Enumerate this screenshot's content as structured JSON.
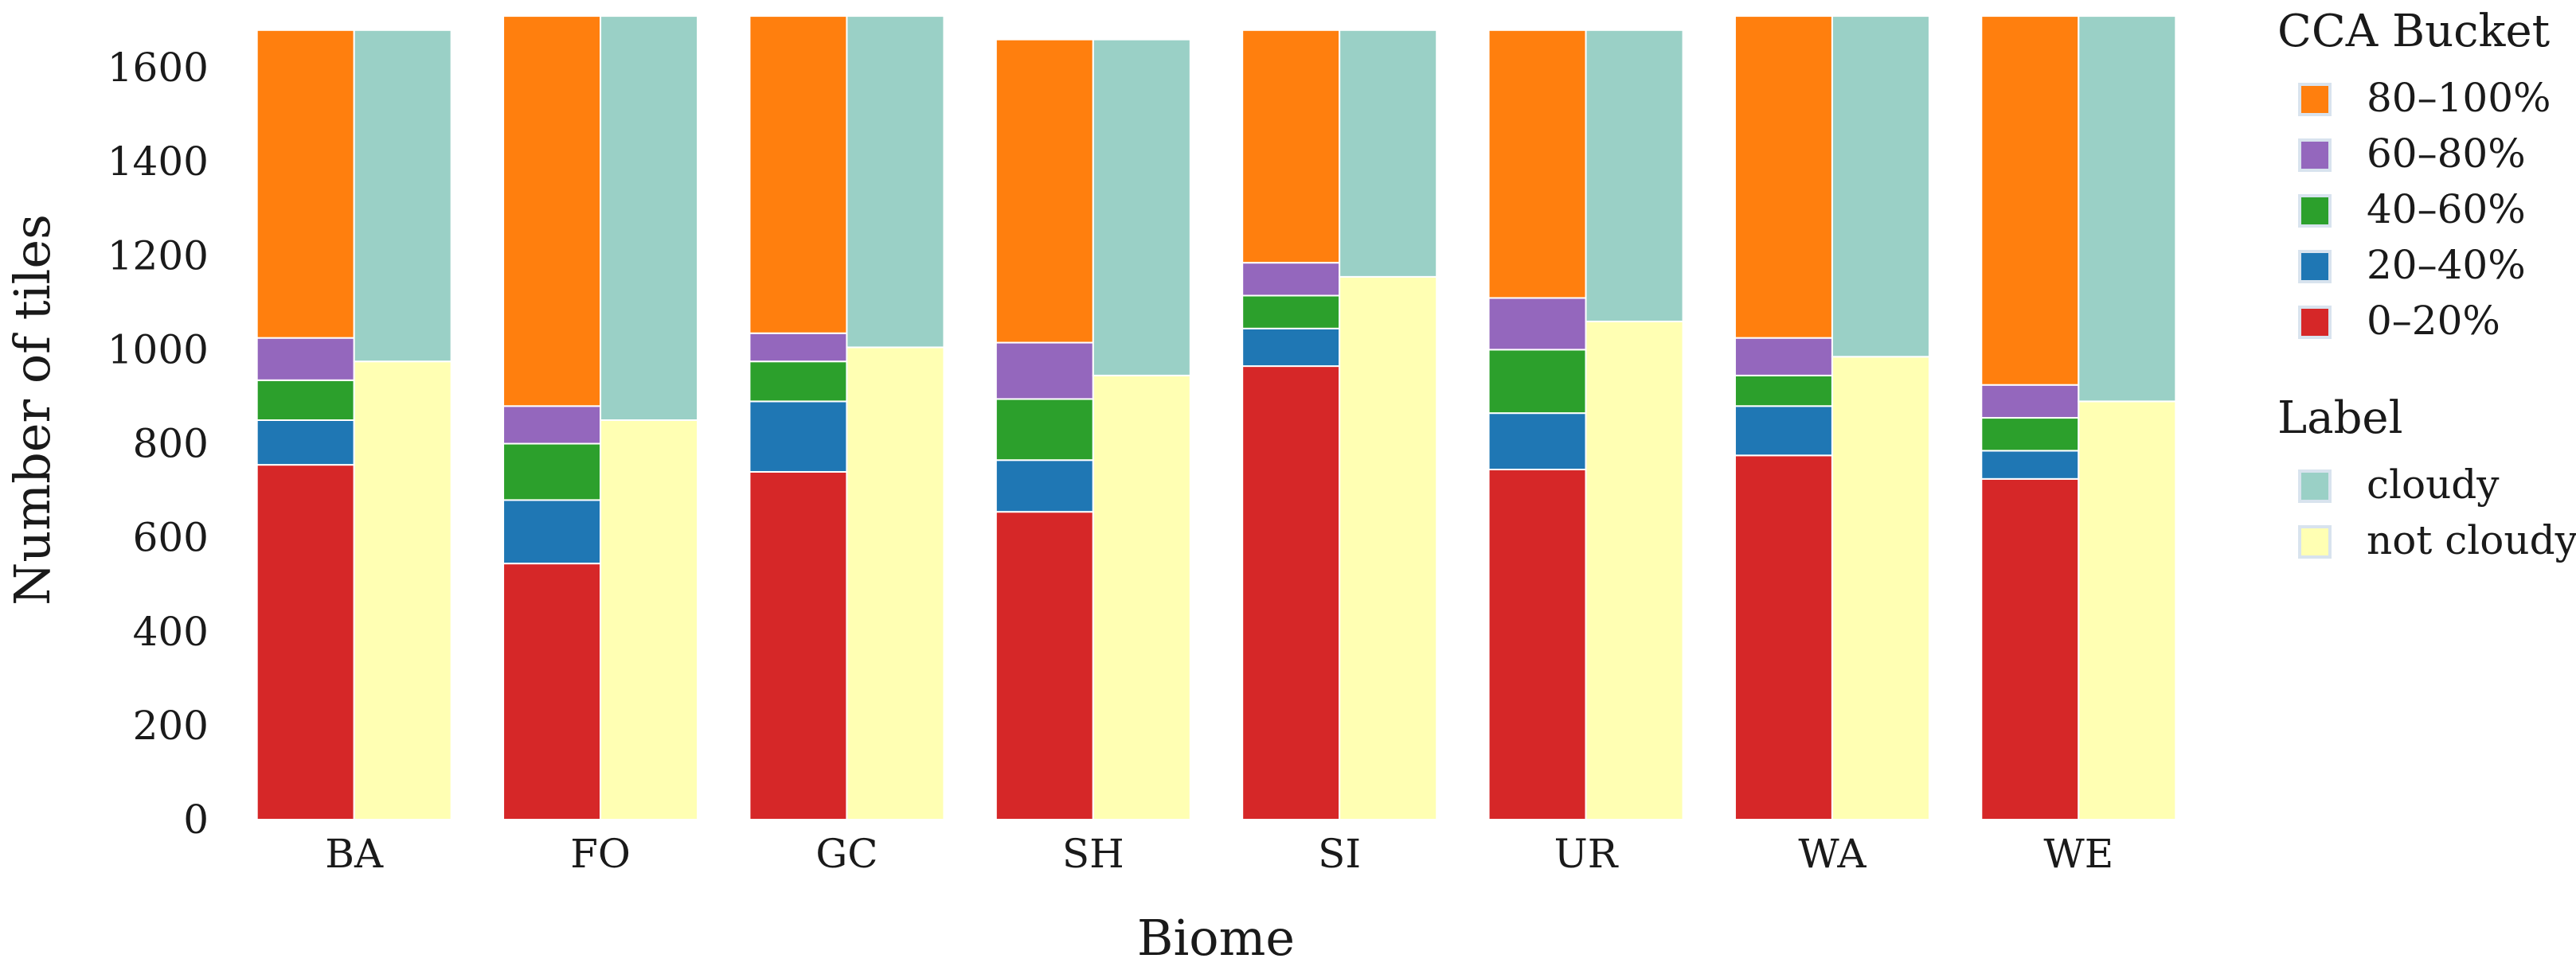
{
  "chart_data": {
    "type": "bar",
    "subtype": "side-by-side stacked bars",
    "title": "",
    "xlabel": "Biome",
    "ylabel": "Number of tiles",
    "ylim": [
      0,
      1700
    ],
    "yticks": [
      0,
      200,
      400,
      600,
      800,
      1000,
      1200,
      1400,
      1600
    ],
    "grid": false,
    "categories": [
      "BA",
      "FO",
      "GC",
      "SH",
      "SI",
      "UR",
      "WA",
      "WE"
    ],
    "cca_series": [
      {
        "name": "0–20%",
        "color": "#d62728",
        "values": [
          755,
          545,
          740,
          655,
          965,
          745,
          775,
          725
        ]
      },
      {
        "name": "20–40%",
        "color": "#1f77b4",
        "values": [
          95,
          135,
          150,
          110,
          80,
          120,
          105,
          60
        ]
      },
      {
        "name": "40–60%",
        "color": "#2ca02c",
        "values": [
          85,
          120,
          85,
          130,
          70,
          135,
          65,
          70
        ]
      },
      {
        "name": "60–80%",
        "color": "#9467bd",
        "values": [
          90,
          80,
          60,
          120,
          70,
          110,
          80,
          70
        ]
      },
      {
        "name": "80–100%",
        "color": "#ff7f0e",
        "values": [
          655,
          830,
          675,
          645,
          495,
          570,
          685,
          785
        ]
      }
    ],
    "label_series": [
      {
        "name": "not cloudy",
        "color": "#ffffb3",
        "values": [
          975,
          850,
          1005,
          945,
          1155,
          1060,
          985,
          890
        ]
      },
      {
        "name": "cloudy",
        "color": "#9ad0c6",
        "values": [
          705,
          860,
          705,
          715,
          525,
          620,
          725,
          820
        ]
      }
    ],
    "legend": {
      "position": "right",
      "groups": [
        {
          "title": "CCA Bucket",
          "entries": [
            "80–100%",
            "60–80%",
            "40–60%",
            "20–40%",
            "0–20%"
          ]
        },
        {
          "title": "Label",
          "entries": [
            "cloudy",
            "not cloudy"
          ]
        }
      ]
    }
  }
}
